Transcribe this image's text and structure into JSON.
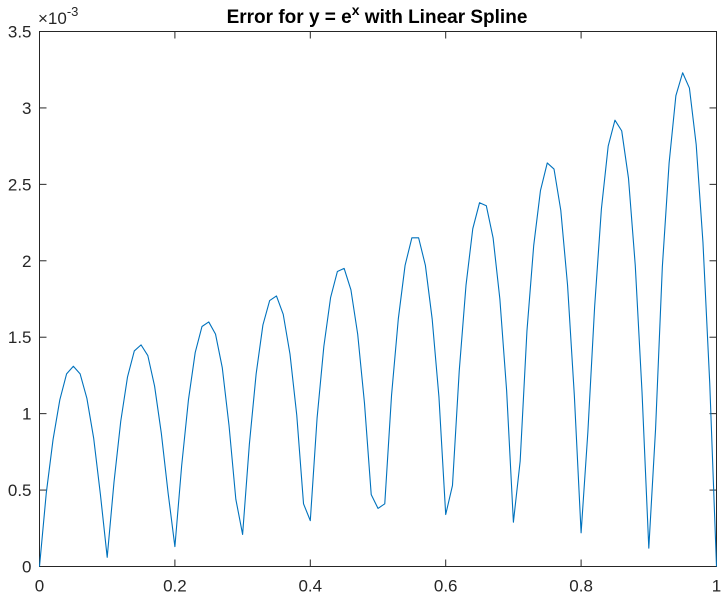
{
  "chart_data": {
    "type": "line",
    "title": {
      "prefix": "Error for y = e",
      "superscript": "x",
      "suffix": " with Linear Spline"
    },
    "xlabel": "",
    "ylabel": "",
    "xlim": [
      0,
      1
    ],
    "ylim": [
      0,
      0.0035
    ],
    "y_exponent_label": {
      "base": "×10",
      "exponent": "-3"
    },
    "xticks": [
      0,
      0.2,
      0.4,
      0.6,
      0.8,
      1
    ],
    "xtick_labels": [
      "0",
      "0.2",
      "0.4",
      "0.6",
      "0.8",
      "1"
    ],
    "yticks": [
      0,
      0.0005,
      0.001,
      0.0015,
      0.002,
      0.0025,
      0.003,
      0.0035
    ],
    "ytick_labels": [
      "0",
      "0.5",
      "1",
      "1.5",
      "2",
      "2.5",
      "3",
      "3.5"
    ],
    "grid": false,
    "legend": "none",
    "series": [
      {
        "color": "#0072BD",
        "x": [
          0,
          0.01,
          0.02,
          0.03,
          0.04,
          0.05,
          0.06,
          0.07,
          0.08,
          0.09,
          0.1,
          0.11,
          0.12,
          0.13,
          0.14,
          0.15,
          0.16,
          0.17,
          0.18,
          0.19,
          0.2,
          0.21,
          0.22,
          0.23,
          0.24,
          0.25,
          0.26,
          0.27,
          0.28,
          0.29,
          0.3,
          0.31,
          0.32,
          0.33,
          0.34,
          0.35,
          0.36,
          0.37,
          0.38,
          0.39,
          0.4,
          0.41,
          0.42,
          0.43,
          0.44,
          0.45,
          0.46,
          0.47,
          0.48,
          0.49,
          0.5,
          0.51,
          0.52,
          0.53,
          0.54,
          0.55,
          0.56,
          0.57,
          0.58,
          0.59,
          0.6,
          0.61,
          0.62,
          0.63,
          0.64,
          0.65,
          0.66,
          0.67,
          0.68,
          0.69,
          0.7,
          0.71,
          0.72,
          0.73,
          0.74,
          0.75,
          0.76,
          0.77,
          0.78,
          0.79,
          0.8,
          0.81,
          0.82,
          0.83,
          0.84,
          0.85,
          0.86,
          0.87,
          0.88,
          0.89,
          0.9,
          0.91,
          0.92,
          0.93,
          0.94,
          0.95,
          0.96,
          0.97,
          0.98,
          0.99,
          1
        ],
        "y": [
          0,
          0.00048,
          0.00083,
          0.00109,
          0.00126,
          0.00131,
          0.00126,
          0.0011,
          0.00084,
          0.00047,
          6e-05,
          0.00055,
          0.00095,
          0.00124,
          0.00141,
          0.00145,
          0.00138,
          0.00118,
          0.00087,
          0.00048,
          0.00013,
          0.00066,
          0.00109,
          0.0014,
          0.00157,
          0.0016,
          0.00152,
          0.0013,
          0.00092,
          0.00044,
          0.00021,
          0.0008,
          0.00126,
          0.00158,
          0.00174,
          0.00177,
          0.00165,
          0.00139,
          0.00099,
          0.00041,
          0.0003,
          0.00097,
          0.00144,
          0.00176,
          0.00193,
          0.00195,
          0.00181,
          0.00152,
          0.00107,
          0.00047,
          0.00038,
          0.00041,
          0.00112,
          0.00162,
          0.00197,
          0.00215,
          0.00215,
          0.00197,
          0.00162,
          0.00111,
          0.00034,
          0.00053,
          0.00128,
          0.00184,
          0.00221,
          0.00238,
          0.00236,
          0.00215,
          0.00175,
          0.00115,
          0.00029,
          0.00069,
          0.00154,
          0.0021,
          0.00246,
          0.00264,
          0.0026,
          0.00233,
          0.00184,
          0.00112,
          0.00022,
          0.00088,
          0.0017,
          0.00234,
          0.00275,
          0.00292,
          0.00285,
          0.00254,
          0.00197,
          0.00114,
          0.00012,
          0.0009,
          0.00196,
          0.00264,
          0.00308,
          0.00323,
          0.00313,
          0.00276,
          0.00212,
          0.0012,
          0
        ]
      }
    ]
  }
}
